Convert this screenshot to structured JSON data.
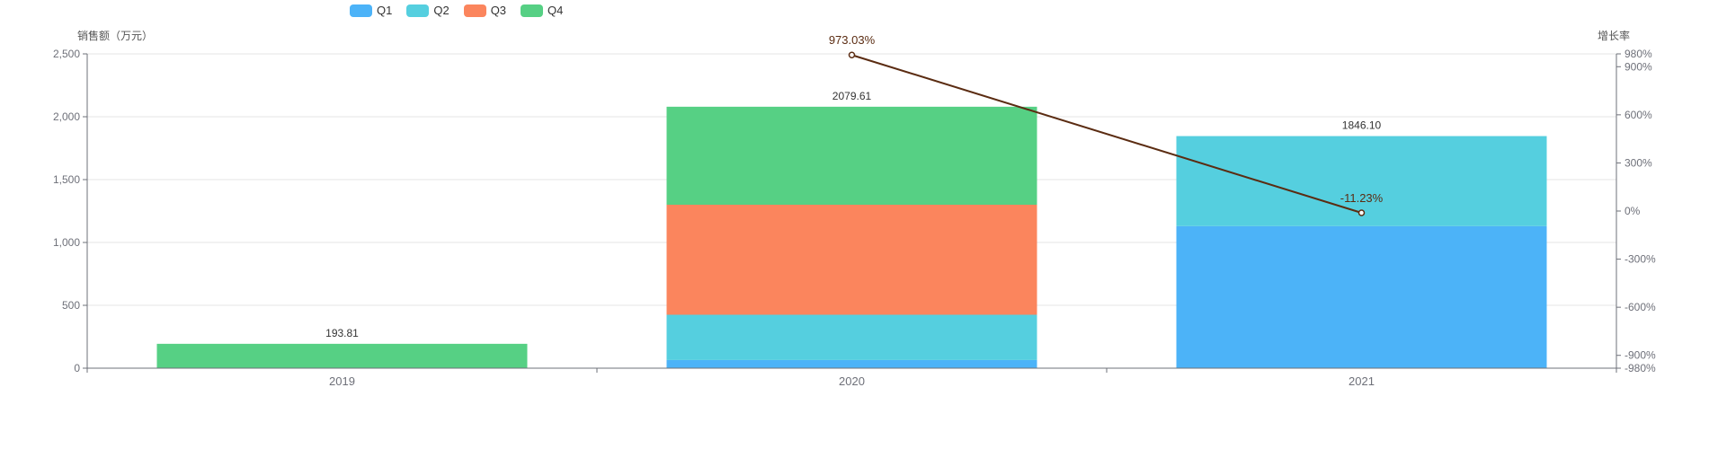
{
  "legend": [
    {
      "name": "Q1",
      "color": "#4cb3f8"
    },
    {
      "name": "Q2",
      "color": "#55cfdf"
    },
    {
      "name": "Q3",
      "color": "#fb855d"
    },
    {
      "name": "Q4",
      "color": "#56d084"
    }
  ],
  "chart_data": {
    "type": "bar",
    "categories": [
      "2019",
      "2020",
      "2021"
    ],
    "stacked": true,
    "ylabel": "销售额（万元）",
    "y2label": "增长率",
    "ylim": [
      0,
      2500
    ],
    "yticks": [
      "0",
      "500",
      "1,000",
      "1,500",
      "2,000",
      "2,500"
    ],
    "y2lim": [
      -980,
      980
    ],
    "y2ticks": [
      "-980%",
      "-900%",
      "-600%",
      "-300%",
      "0%",
      "300%",
      "600%",
      "900%",
      "980%"
    ],
    "series": [
      {
        "name": "Q1",
        "color": "#4cb3f8",
        "values": [
          0,
          65,
          1130
        ]
      },
      {
        "name": "Q2",
        "color": "#55cfdf",
        "values": [
          0,
          360,
          716.1
        ]
      },
      {
        "name": "Q3",
        "color": "#fb855d",
        "values": [
          0,
          875,
          0
        ]
      },
      {
        "name": "Q4",
        "color": "#56d084",
        "values": [
          193.81,
          779.61,
          0
        ]
      }
    ],
    "totals": [
      "193.81",
      "2079.61",
      "1846.10"
    ],
    "growth": {
      "color": "#5b2c12",
      "points": [
        {
          "category": "2020",
          "value": 973.03,
          "label": "973.03%"
        },
        {
          "category": "2021",
          "value": -11.23,
          "label": "-11.23%"
        }
      ]
    },
    "grid": true,
    "legend_position": "top-left"
  }
}
